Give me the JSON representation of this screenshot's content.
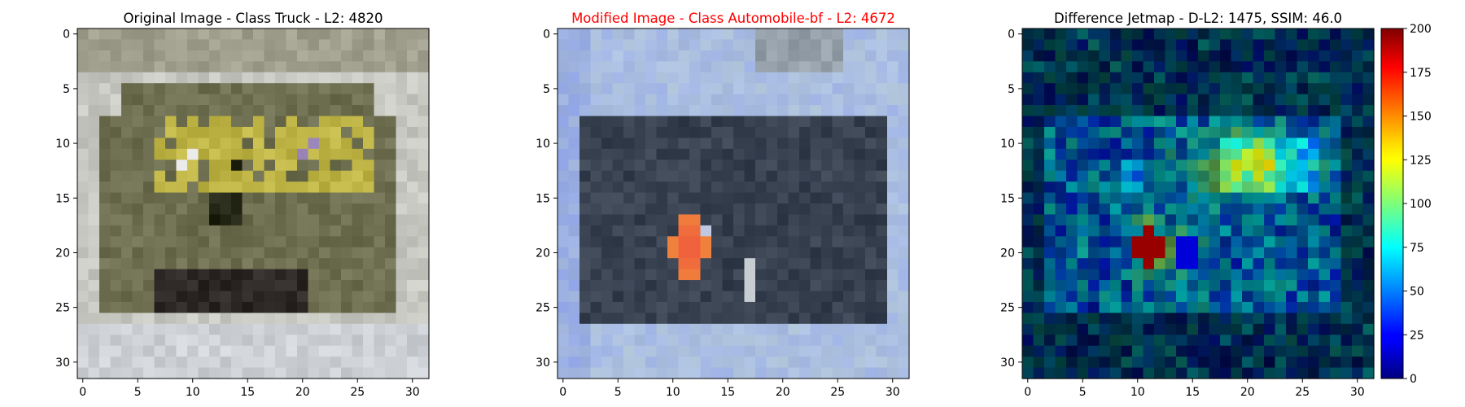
{
  "figure": {
    "panels": [
      {
        "id": "original",
        "title": "Original Image - Class Truck - L2: 4820",
        "title_color": "#000000"
      },
      {
        "id": "modified",
        "title": "Modified Image - Class Automobile-bf - L2: 4672",
        "title_color": "#ff0000"
      },
      {
        "id": "difference",
        "title": "Difference Jetmap - D-L2: 1475, SSIM: 46.0",
        "title_color": "#000000"
      }
    ]
  },
  "chart_data": [
    {
      "type": "heatmap",
      "title": "Original Image - Class Truck - L2: 4820",
      "grid": "32x32 RGB image",
      "xlim": [
        -0.5,
        31.5
      ],
      "ylim": [
        31.5,
        -0.5
      ],
      "xticks": [
        0,
        5,
        10,
        15,
        20,
        25,
        30
      ],
      "yticks": [
        0,
        5,
        10,
        15,
        20,
        25,
        30
      ]
    },
    {
      "type": "heatmap",
      "title": "Modified Image - Class Automobile-bf - L2: 4672",
      "grid": "32x32 RGB image",
      "xlim": [
        -0.5,
        31.5
      ],
      "ylim": [
        31.5,
        -0.5
      ],
      "xticks": [
        0,
        5,
        10,
        15,
        20,
        25,
        30
      ],
      "yticks": [
        0,
        5,
        10,
        15,
        20,
        25,
        30
      ]
    },
    {
      "type": "heatmap",
      "title": "Difference Jetmap - D-L2: 1475, SSIM: 46.0",
      "grid": "32x32 difference image",
      "colormap": "jet",
      "xlim": [
        -0.5,
        31.5
      ],
      "ylim": [
        31.5,
        -0.5
      ],
      "xticks": [
        0,
        5,
        10,
        15,
        20,
        25,
        30
      ],
      "yticks": [
        0,
        5,
        10,
        15,
        20,
        25,
        30
      ],
      "colorbar": {
        "range": [
          0,
          200
        ],
        "ticks": [
          0,
          25,
          50,
          75,
          100,
          125,
          150,
          175,
          200
        ]
      }
    }
  ]
}
